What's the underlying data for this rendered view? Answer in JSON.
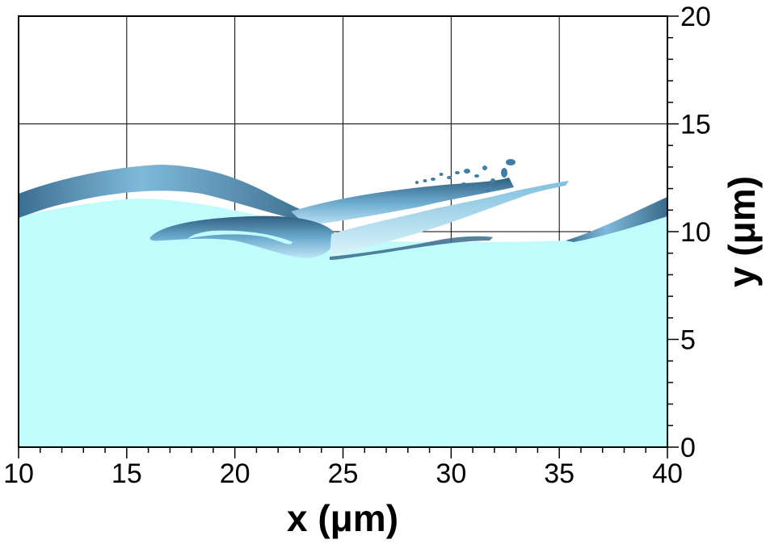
{
  "figure": {
    "x_label": "x (μm)",
    "y_label": "y (μm)",
    "x_ticks": [
      "10",
      "15",
      "20",
      "25",
      "30",
      "35",
      "40"
    ],
    "y_ticks": [
      "0",
      "5",
      "10",
      "15",
      "20"
    ],
    "x_range": [
      10,
      40
    ],
    "y_range": [
      0,
      20
    ],
    "grid": true,
    "y_axis_side": "right",
    "colors": {
      "liquid": "#c1fcfc",
      "surface_light": "#9ed0ec",
      "surface_mid": "#5f9fc4",
      "surface_dark": "#2f5f80"
    }
  }
}
